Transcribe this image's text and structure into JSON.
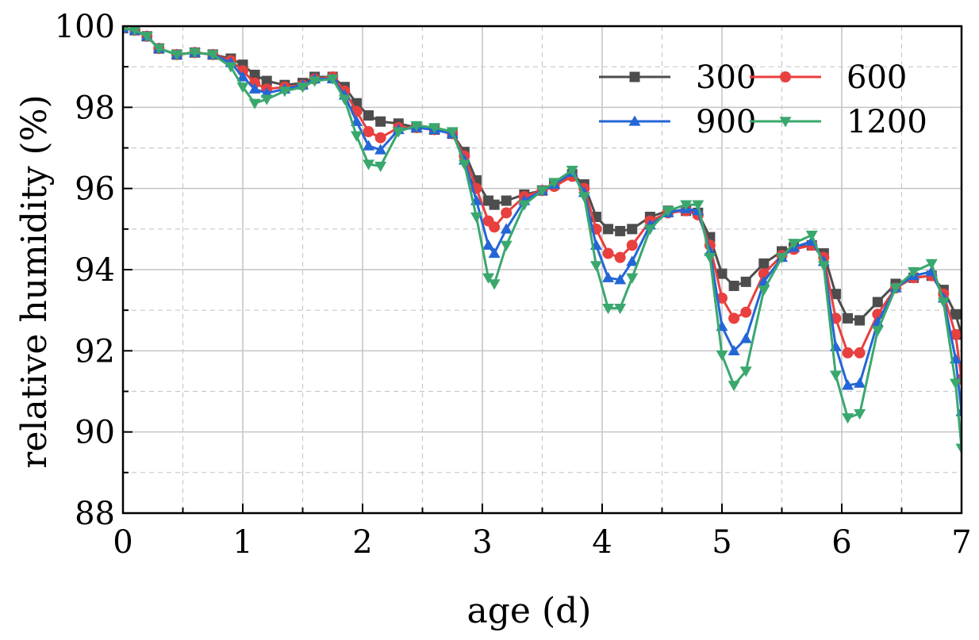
{
  "chart_data": {
    "type": "line",
    "title": "",
    "xlabel": "age (d)",
    "ylabel": "relative humidity (%)",
    "xlim": [
      0,
      7
    ],
    "ylim": [
      88,
      100
    ],
    "xticks": [
      "0",
      "1",
      "2",
      "3",
      "4",
      "5",
      "6",
      "7"
    ],
    "yticks": [
      "88",
      "90",
      "92",
      "94",
      "96",
      "98",
      "100"
    ],
    "grid": true,
    "legend_position": "top-right",
    "series": [
      {
        "name": "300",
        "color": "#4d4d4d",
        "marker": "square",
        "x": [
          0,
          0.1,
          0.2,
          0.3,
          0.45,
          0.6,
          0.75,
          0.9,
          1.0,
          1.1,
          1.2,
          1.35,
          1.5,
          1.6,
          1.75,
          1.85,
          1.95,
          2.05,
          2.15,
          2.3,
          2.45,
          2.6,
          2.75,
          2.85,
          2.95,
          3.05,
          3.1,
          3.2,
          3.35,
          3.5,
          3.6,
          3.75,
          3.85,
          3.95,
          4.05,
          4.15,
          4.25,
          4.4,
          4.55,
          4.7,
          4.8,
          4.9,
          5.0,
          5.1,
          5.2,
          5.35,
          5.5,
          5.6,
          5.75,
          5.85,
          5.95,
          6.05,
          6.15,
          6.3,
          6.45,
          6.6,
          6.75,
          6.85,
          6.95,
          7.0
        ],
        "y": [
          99.95,
          99.9,
          99.75,
          99.45,
          99.3,
          99.35,
          99.3,
          99.2,
          99.05,
          98.8,
          98.65,
          98.55,
          98.6,
          98.75,
          98.75,
          98.5,
          98.1,
          97.8,
          97.65,
          97.6,
          97.5,
          97.45,
          97.35,
          96.9,
          96.2,
          95.7,
          95.6,
          95.7,
          95.85,
          95.95,
          96.1,
          96.35,
          96.1,
          95.3,
          95.0,
          94.95,
          95.0,
          95.3,
          95.45,
          95.45,
          95.4,
          94.8,
          93.9,
          93.6,
          93.7,
          94.15,
          94.45,
          94.55,
          94.6,
          94.4,
          93.4,
          92.8,
          92.75,
          93.2,
          93.65,
          93.8,
          93.85,
          93.5,
          92.9,
          92.4
        ]
      },
      {
        "name": "600",
        "color": "#e8403e",
        "marker": "circle",
        "x": [
          0,
          0.1,
          0.2,
          0.3,
          0.45,
          0.6,
          0.75,
          0.9,
          1.0,
          1.1,
          1.2,
          1.35,
          1.5,
          1.6,
          1.75,
          1.85,
          1.95,
          2.05,
          2.15,
          2.3,
          2.45,
          2.6,
          2.75,
          2.85,
          2.95,
          3.05,
          3.1,
          3.2,
          3.35,
          3.5,
          3.6,
          3.75,
          3.85,
          3.95,
          4.05,
          4.15,
          4.25,
          4.4,
          4.55,
          4.7,
          4.8,
          4.9,
          5.0,
          5.1,
          5.2,
          5.35,
          5.5,
          5.6,
          5.75,
          5.85,
          5.95,
          6.05,
          6.15,
          6.3,
          6.45,
          6.6,
          6.75,
          6.85,
          6.95,
          7.0
        ],
        "y": [
          99.95,
          99.9,
          99.75,
          99.45,
          99.3,
          99.35,
          99.3,
          99.15,
          98.9,
          98.6,
          98.45,
          98.5,
          98.55,
          98.7,
          98.75,
          98.4,
          97.9,
          97.4,
          97.25,
          97.5,
          97.5,
          97.45,
          97.35,
          96.8,
          96.0,
          95.2,
          95.05,
          95.4,
          95.8,
          95.95,
          96.05,
          96.3,
          96.0,
          95.0,
          94.4,
          94.3,
          94.6,
          95.2,
          95.4,
          95.45,
          95.35,
          94.6,
          93.3,
          92.8,
          92.95,
          93.9,
          94.35,
          94.5,
          94.6,
          94.3,
          92.8,
          91.95,
          91.95,
          92.9,
          93.55,
          93.8,
          93.85,
          93.4,
          92.4,
          91.3
        ]
      },
      {
        "name": "900",
        "color": "#2466d6",
        "marker": "triangle-up",
        "x": [
          0,
          0.1,
          0.2,
          0.3,
          0.45,
          0.6,
          0.75,
          0.9,
          1.0,
          1.1,
          1.2,
          1.35,
          1.5,
          1.6,
          1.75,
          1.85,
          1.95,
          2.05,
          2.15,
          2.3,
          2.45,
          2.6,
          2.75,
          2.85,
          2.95,
          3.05,
          3.1,
          3.2,
          3.35,
          3.5,
          3.6,
          3.75,
          3.85,
          3.95,
          4.05,
          4.15,
          4.25,
          4.4,
          4.55,
          4.7,
          4.8,
          4.9,
          5.0,
          5.1,
          5.2,
          5.35,
          5.5,
          5.6,
          5.75,
          5.85,
          5.95,
          6.05,
          6.15,
          6.3,
          6.45,
          6.6,
          6.75,
          6.85,
          6.95,
          7.0
        ],
        "y": [
          99.95,
          99.9,
          99.75,
          99.45,
          99.3,
          99.35,
          99.3,
          99.1,
          98.75,
          98.45,
          98.35,
          98.45,
          98.55,
          98.7,
          98.7,
          98.3,
          97.65,
          97.05,
          96.95,
          97.45,
          97.5,
          97.45,
          97.35,
          96.7,
          95.7,
          94.6,
          94.4,
          95.0,
          95.7,
          95.95,
          96.1,
          96.4,
          95.9,
          94.6,
          93.8,
          93.75,
          94.2,
          95.1,
          95.4,
          95.5,
          95.45,
          94.45,
          92.6,
          92.0,
          92.3,
          93.7,
          94.3,
          94.55,
          94.7,
          94.2,
          92.1,
          91.15,
          91.2,
          92.7,
          93.55,
          93.85,
          93.95,
          93.3,
          91.8,
          90.5
        ]
      },
      {
        "name": "1200",
        "color": "#3aa86e",
        "marker": "triangle-down",
        "x": [
          0,
          0.1,
          0.2,
          0.3,
          0.45,
          0.6,
          0.75,
          0.9,
          1.0,
          1.1,
          1.2,
          1.35,
          1.5,
          1.6,
          1.75,
          1.85,
          1.95,
          2.05,
          2.15,
          2.3,
          2.45,
          2.6,
          2.75,
          2.85,
          2.95,
          3.05,
          3.1,
          3.2,
          3.35,
          3.5,
          3.6,
          3.75,
          3.85,
          3.95,
          4.05,
          4.15,
          4.25,
          4.4,
          4.55,
          4.7,
          4.8,
          4.9,
          5.0,
          5.1,
          5.2,
          5.35,
          5.5,
          5.6,
          5.75,
          5.85,
          5.95,
          6.05,
          6.15,
          6.3,
          6.45,
          6.6,
          6.75,
          6.85,
          6.95,
          7.0
        ],
        "y": [
          99.95,
          99.9,
          99.75,
          99.45,
          99.3,
          99.35,
          99.3,
          99.0,
          98.5,
          98.1,
          98.2,
          98.4,
          98.5,
          98.65,
          98.7,
          98.2,
          97.3,
          96.6,
          96.55,
          97.4,
          97.55,
          97.5,
          97.4,
          96.6,
          95.3,
          93.8,
          93.65,
          94.6,
          95.6,
          95.95,
          96.15,
          96.45,
          95.8,
          94.1,
          93.05,
          93.05,
          93.8,
          95.0,
          95.45,
          95.6,
          95.6,
          94.3,
          91.9,
          91.15,
          91.5,
          93.5,
          94.3,
          94.65,
          94.85,
          94.1,
          91.4,
          90.35,
          90.45,
          92.5,
          93.55,
          93.95,
          94.15,
          93.2,
          91.2,
          89.6
        ]
      }
    ]
  }
}
